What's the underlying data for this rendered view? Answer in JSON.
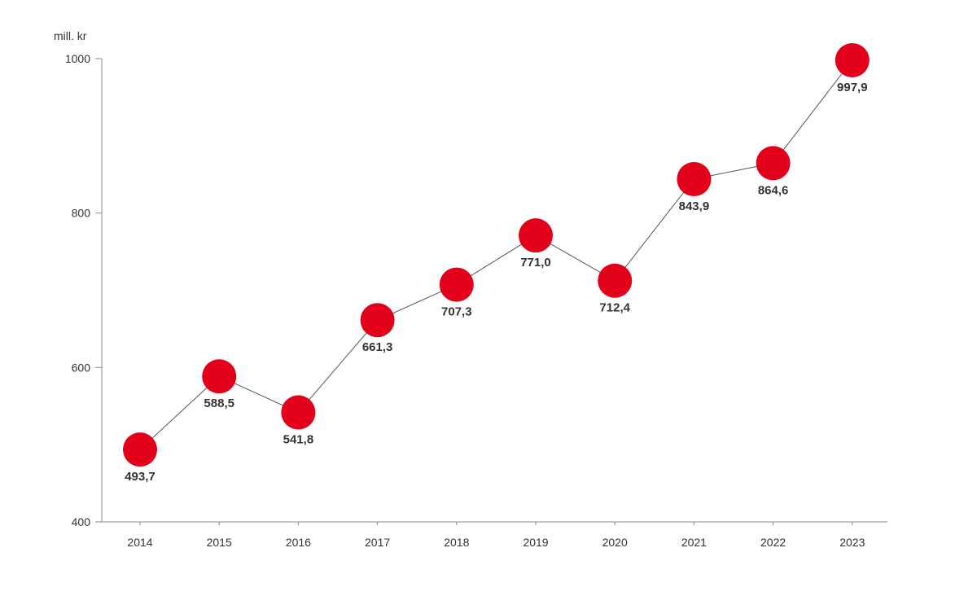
{
  "chart_data": {
    "type": "line",
    "title": "",
    "xlabel": "",
    "ylabel": "mill. kr",
    "categories": [
      "2014",
      "2015",
      "2016",
      "2017",
      "2018",
      "2019",
      "2020",
      "2021",
      "2022",
      "2023"
    ],
    "series": [
      {
        "values": [
          493.7,
          588.5,
          541.8,
          661.3,
          707.3,
          771.0,
          712.4,
          843.9,
          864.6,
          997.9
        ],
        "labels": [
          "493,7",
          "588,5",
          "541,8",
          "661,3",
          "707,3",
          "771,0",
          "712,4",
          "843,9",
          "864,6",
          "997,9"
        ],
        "color": "#e2001a"
      }
    ],
    "ylim": [
      400,
      1000
    ],
    "yticks": [
      "400",
      "600",
      "800",
      "1000"
    ],
    "grid": false,
    "line_color": "#555555",
    "axis_color": "#8a8a8a"
  }
}
